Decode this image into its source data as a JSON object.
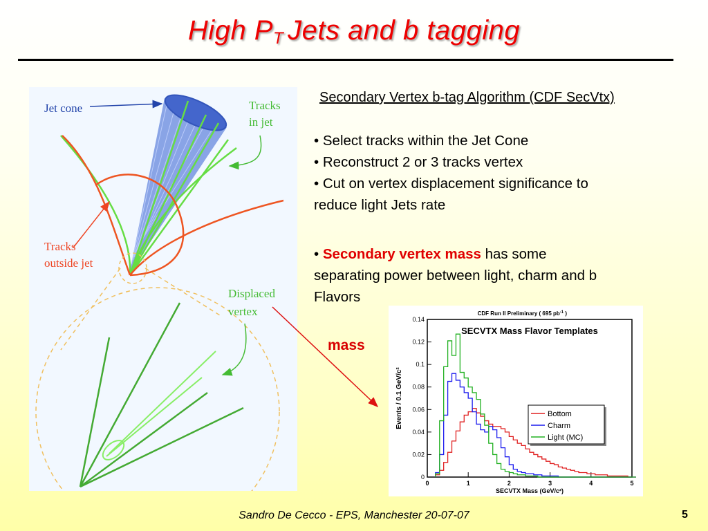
{
  "slide": {
    "title_main": "High P",
    "title_sub": "T",
    "title_rest": "Jets and b tagging",
    "footer": "Sandro De Cecco  -  EPS, Manchester 20-07-07",
    "page_number": "5"
  },
  "diagram": {
    "label_jet_cone": "Jet cone",
    "label_tracks_in_jet_1": "Tracks",
    "label_tracks_in_jet_2": "in jet",
    "label_tracks_outside_1": "Tracks",
    "label_tracks_outside_2": "outside jet",
    "label_displaced_1": "Displaced",
    "label_displaced_2": "vertex"
  },
  "text": {
    "algo_heading": "Secondary Vertex b-tag Algorithm (CDF SecVtx)",
    "bullet1": "• Select tracks within the Jet Cone",
    "bullet2": "• Reconstruct 2 or 3 tracks vertex",
    "bullet3a": "• Cut on vertex displacement significance to",
    "bullet3b": "reduce light Jets rate",
    "bullet4_prefix": "• ",
    "bullet4_highlight": "Secondary vertex mass",
    "bullet4_rest": " has some",
    "bullet4_line2": "separating power between light, charm and b",
    "bullet4_line3": "Flavors",
    "mass_label": "mass"
  },
  "colors": {
    "title_red": "#ee0000",
    "highlight_red": "#e00000",
    "bottom": "#e02020",
    "charm": "#1a1aee",
    "light": "#20b020",
    "track_green": "#66dd44",
    "track_orange": "#ee5522",
    "cone_blue": "#5577dd"
  },
  "chart_data": {
    "type": "line",
    "header": "CDF Run II Preliminary ( 695 pb",
    "header_sup": "-1",
    "header_end": " )",
    "title": "SECVTX Mass Flavor Templates",
    "xlabel": "SECVTX Mass (GeV/c²)",
    "ylabel": "Events / 0.1 GeV/c²",
    "xlim": [
      0,
      5
    ],
    "ylim": [
      0,
      0.14
    ],
    "xticks": [
      "0",
      "1",
      "2",
      "3",
      "4",
      "5"
    ],
    "yticks": [
      "0",
      "0.02",
      "0.04",
      "0.06",
      "0.08",
      "0.1",
      "0.12",
      "0.14"
    ],
    "legend_position": "right",
    "bin_width": 0.1,
    "x_start": 0.2,
    "series": [
      {
        "name": "Bottom",
        "color": "#e02020",
        "values": [
          0.002,
          0.006,
          0.013,
          0.022,
          0.032,
          0.041,
          0.049,
          0.055,
          0.058,
          0.061,
          0.057,
          0.054,
          0.05,
          0.047,
          0.045,
          0.045,
          0.043,
          0.04,
          0.036,
          0.033,
          0.03,
          0.028,
          0.025,
          0.022,
          0.02,
          0.018,
          0.016,
          0.014,
          0.012,
          0.011,
          0.009,
          0.008,
          0.007,
          0.006,
          0.005,
          0.004,
          0.004,
          0.003,
          0.003,
          0.002,
          0.002,
          0.002,
          0.001,
          0.001,
          0.001,
          0.001,
          0.001,
          0.0,
          0.0
        ]
      },
      {
        "name": "Charm",
        "color": "#1a1aee",
        "values": [
          0.004,
          0.02,
          0.055,
          0.085,
          0.092,
          0.086,
          0.08,
          0.075,
          0.07,
          0.058,
          0.047,
          0.042,
          0.04,
          0.045,
          0.042,
          0.035,
          0.026,
          0.018,
          0.011,
          0.007,
          0.005,
          0.004,
          0.003,
          0.003,
          0.002,
          0.002,
          0.001,
          0.001,
          0.001,
          0.001,
          0.0,
          0.0,
          0.0,
          0.0,
          0.0,
          0.0,
          0.0,
          0.0,
          0.0,
          0.0,
          0.0,
          0.0,
          0.0,
          0.0,
          0.0,
          0.0,
          0.0,
          0.0,
          0.0
        ]
      },
      {
        "name": "Light (MC)",
        "color": "#20b020",
        "values": [
          0.003,
          0.05,
          0.098,
          0.121,
          0.108,
          0.127,
          0.093,
          0.088,
          0.08,
          0.075,
          0.069,
          0.056,
          0.046,
          0.03,
          0.02,
          0.012,
          0.007,
          0.005,
          0.004,
          0.003,
          0.002,
          0.002,
          0.001,
          0.001,
          0.001,
          0.0,
          0.0,
          0.0,
          0.0,
          0.0,
          0.0,
          0.0,
          0.0,
          0.0,
          0.0,
          0.0,
          0.0,
          0.0,
          0.0,
          0.0,
          0.0,
          0.0,
          0.0,
          0.0,
          0.0,
          0.0,
          0.0,
          0.0,
          0.0
        ]
      }
    ]
  }
}
